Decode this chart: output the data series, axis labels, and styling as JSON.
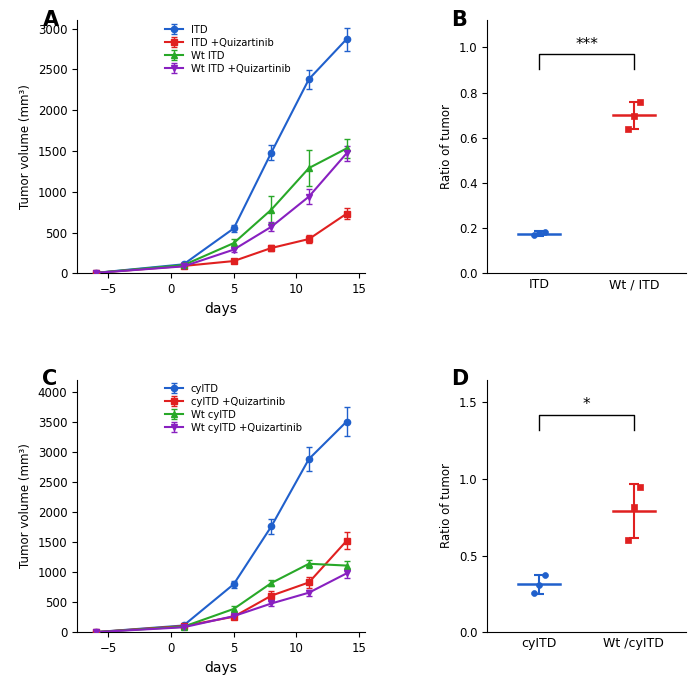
{
  "panel_A": {
    "days": [
      -6,
      1,
      5,
      8,
      11,
      14
    ],
    "ITD": [
      5,
      110,
      550,
      1480,
      2380,
      2870
    ],
    "ITD_err": [
      3,
      15,
      45,
      95,
      115,
      140
    ],
    "ITD_Quiz": [
      5,
      90,
      150,
      310,
      420,
      730
    ],
    "ITD_Quiz_err": [
      3,
      12,
      25,
      35,
      45,
      70
    ],
    "Wt_ITD": [
      5,
      100,
      370,
      780,
      1290,
      1530
    ],
    "Wt_ITD_err": [
      3,
      18,
      55,
      165,
      220,
      120
    ],
    "Wt_ITD_Quiz": [
      5,
      85,
      290,
      570,
      940,
      1470
    ],
    "Wt_ITD_Quiz_err": [
      3,
      12,
      35,
      55,
      95,
      95
    ],
    "ylabel": "Tumor volume (mm³)",
    "xlabel": "days",
    "ylim": [
      0,
      3100
    ],
    "yticks": [
      0,
      500,
      1000,
      1500,
      2000,
      2500,
      3000
    ],
    "xlim": [
      -7.5,
      15.5
    ],
    "xticks": [
      -5,
      0,
      5,
      10,
      15
    ],
    "legend_labels": [
      "ITD",
      "ITD +Quizartinib",
      "Wt ITD",
      "Wt ITD +Quizartinib"
    ],
    "colors": [
      "#2060cc",
      "#e02020",
      "#28a828",
      "#8820c0"
    ],
    "markers": [
      "o",
      "s",
      "^",
      "v"
    ]
  },
  "panel_B": {
    "ITD_pts": [
      0.17,
      0.178,
      0.182
    ],
    "WtITD_pts": [
      0.64,
      0.695,
      0.76
    ],
    "ITD_mean": 0.176,
    "WtITD_mean": 0.7,
    "ITD_sd": 0.012,
    "WtITD_sd": 0.06,
    "ylabel": "Ratio of tumor",
    "xlabels": [
      "ITD",
      "Wt / ITD"
    ],
    "ylim": [
      0.0,
      1.12
    ],
    "yticks": [
      0.0,
      0.2,
      0.4,
      0.6,
      0.8,
      1.0
    ],
    "bracket_y": 0.97,
    "sig_text": "***",
    "colors": [
      "#2060cc",
      "#e02020"
    ]
  },
  "panel_C": {
    "days": [
      -6,
      1,
      5,
      8,
      11,
      14
    ],
    "cyITD": [
      5,
      115,
      800,
      1760,
      2880,
      3500
    ],
    "cyITD_err": [
      3,
      18,
      55,
      120,
      195,
      240
    ],
    "cyITD_Quiz": [
      5,
      105,
      260,
      610,
      830,
      1520
    ],
    "cyITD_Quiz_err": [
      3,
      12,
      28,
      75,
      95,
      140
    ],
    "Wt_cyITD": [
      5,
      95,
      390,
      820,
      1140,
      1110
    ],
    "Wt_cyITD_err": [
      3,
      12,
      45,
      55,
      65,
      75
    ],
    "Wt_cyITD_Quiz": [
      5,
      85,
      270,
      480,
      660,
      980
    ],
    "Wt_cyITD_Quiz_err": [
      3,
      8,
      28,
      38,
      48,
      75
    ],
    "ylabel": "Tumor volume (mm³)",
    "xlabel": "days",
    "ylim": [
      0,
      4200
    ],
    "yticks": [
      0,
      500,
      1000,
      1500,
      2000,
      2500,
      3000,
      3500,
      4000
    ],
    "xlim": [
      -7.5,
      15.5
    ],
    "xticks": [
      -5,
      0,
      5,
      10,
      15
    ],
    "legend_labels": [
      "cyITD",
      "cyITD +Quizartinib",
      "Wt cyITD",
      "Wt cyITD +Quizartinib"
    ],
    "colors": [
      "#2060cc",
      "#e02020",
      "#28a828",
      "#8820c0"
    ],
    "markers": [
      "o",
      "s",
      "^",
      "v"
    ]
  },
  "panel_D": {
    "cyITD_pts": [
      0.255,
      0.31,
      0.375
    ],
    "WtcyITD_pts": [
      0.6,
      0.82,
      0.95
    ],
    "cyITD_mean": 0.313,
    "WtcyITD_mean": 0.79,
    "cyITD_sd": 0.06,
    "WtcyITD_sd": 0.175,
    "ylabel": "Ratio of tumor",
    "xlabels": [
      "cyITD",
      "Wt /cyITD"
    ],
    "ylim": [
      0.0,
      1.65
    ],
    "yticks": [
      0.0,
      0.5,
      1.0,
      1.5
    ],
    "bracket_y": 1.42,
    "sig_text": "*",
    "colors": [
      "#2060cc",
      "#e02020"
    ]
  }
}
